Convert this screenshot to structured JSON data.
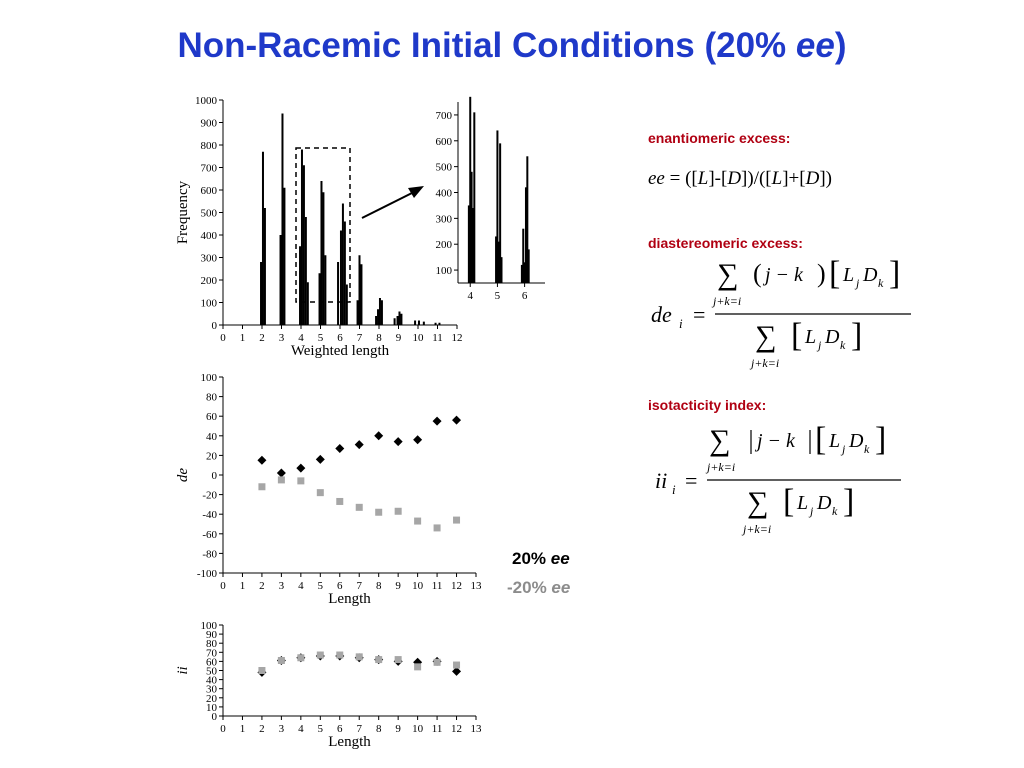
{
  "title": {
    "main": "Non-Racemic Initial Conditions (20% ",
    "em": "ee",
    "close": ")"
  },
  "labels": {
    "enantiomeric": "enantiomeric excess:",
    "diastereomeric": "diastereomeric excess:",
    "isotacticity": "isotacticity index:"
  },
  "ee_formula": {
    "lhs": "ee",
    "rhs_1": " = ([",
    "L": "L",
    "rhs_2": "]-[",
    "D": "D",
    "rhs_3": "])/([",
    "rhs_4": "]+[",
    "rhs_5": "])"
  },
  "formula_symbols": {
    "sum": "∑",
    "sub": "j+k=i",
    "jk": "j − k",
    "L": "L",
    "j": "j",
    "D": "D",
    "k": "k",
    "de": "de",
    "ii": "ii",
    "i": "i",
    "eq": "="
  },
  "legend": {
    "a_num": "20% ",
    "a_em": "ee",
    "a_color": "#000000",
    "b_num": "-20% ",
    "b_em": "ee",
    "b_color": "#8c8c8c"
  },
  "chart_data": [
    {
      "type": "bar",
      "ylabel": "Frequency",
      "xlabel": "Weighted length",
      "xlim": [
        0,
        12
      ],
      "ylim": [
        0,
        1000
      ],
      "xticks": [
        0,
        1,
        2,
        3,
        4,
        5,
        6,
        7,
        8,
        9,
        10,
        11,
        12
      ],
      "yticks": [
        0,
        100,
        200,
        300,
        400,
        500,
        600,
        700,
        800,
        900,
        1000
      ],
      "spikes": [
        [
          1.95,
          280
        ],
        [
          2.05,
          770
        ],
        [
          2.15,
          520
        ],
        [
          2.95,
          400
        ],
        [
          3.05,
          940
        ],
        [
          3.15,
          610
        ],
        [
          3.95,
          350
        ],
        [
          4.05,
          780
        ],
        [
          4.15,
          710
        ],
        [
          4.25,
          480
        ],
        [
          4.35,
          190
        ],
        [
          4.95,
          230
        ],
        [
          5.05,
          640
        ],
        [
          5.15,
          590
        ],
        [
          5.25,
          310
        ],
        [
          5.9,
          280
        ],
        [
          6.05,
          420
        ],
        [
          6.15,
          540
        ],
        [
          6.25,
          460
        ],
        [
          6.35,
          180
        ],
        [
          6.9,
          110
        ],
        [
          7.0,
          310
        ],
        [
          7.1,
          270
        ],
        [
          7.85,
          40
        ],
        [
          7.95,
          70
        ],
        [
          8.05,
          120
        ],
        [
          8.15,
          110
        ],
        [
          8.8,
          30
        ],
        [
          8.95,
          40
        ],
        [
          9.05,
          60
        ],
        [
          9.15,
          50
        ],
        [
          9.85,
          20
        ],
        [
          10.05,
          20
        ],
        [
          10.3,
          15
        ],
        [
          10.9,
          10
        ],
        [
          11.1,
          10
        ]
      ]
    },
    {
      "type": "bar",
      "note": "inset zoom",
      "xlim": [
        3.55,
        6.75
      ],
      "ylim": [
        50,
        750
      ],
      "xticks": [
        4,
        5,
        6
      ],
      "yticks": [
        100,
        200,
        300,
        400,
        500,
        600,
        700
      ],
      "spikes": [
        [
          3.95,
          350
        ],
        [
          4.0,
          770
        ],
        [
          4.05,
          480
        ],
        [
          4.1,
          340
        ],
        [
          4.15,
          710
        ],
        [
          4.95,
          230
        ],
        [
          5.0,
          640
        ],
        [
          5.05,
          210
        ],
        [
          5.1,
          590
        ],
        [
          5.15,
          150
        ],
        [
          5.9,
          120
        ],
        [
          5.95,
          260
        ],
        [
          6.0,
          130
        ],
        [
          6.05,
          420
        ],
        [
          6.1,
          540
        ],
        [
          6.15,
          180
        ]
      ]
    },
    {
      "type": "scatter",
      "ylabel": "de",
      "xlabel": "Length",
      "xlim": [
        0,
        13
      ],
      "ylim": [
        -100,
        100
      ],
      "xticks": [
        0,
        1,
        2,
        3,
        4,
        5,
        6,
        7,
        8,
        9,
        10,
        11,
        12,
        13
      ],
      "yticks": [
        100,
        80,
        60,
        40,
        20,
        0,
        -20,
        -40,
        -60,
        -80,
        -100
      ],
      "x": [
        2,
        3,
        4,
        5,
        6,
        7,
        8,
        9,
        10,
        11,
        12
      ],
      "series": [
        {
          "name": "20% ee",
          "color": "#000000",
          "marker": "diamond",
          "values": [
            15,
            2,
            7,
            16,
            27,
            31,
            40,
            34,
            36,
            55,
            56
          ]
        },
        {
          "name": "-20% ee",
          "color": "#a6a6a6",
          "marker": "square",
          "values": [
            -12,
            -5,
            -6,
            -18,
            -27,
            -33,
            -38,
            -37,
            -47,
            -54,
            -46
          ]
        }
      ]
    },
    {
      "type": "scatter",
      "ylabel": "ii",
      "xlabel": "Length",
      "xlim": [
        0,
        13
      ],
      "ylim": [
        0,
        100
      ],
      "xticks": [
        0,
        1,
        2,
        3,
        4,
        5,
        6,
        7,
        8,
        9,
        10,
        11,
        12,
        13
      ],
      "yticks": [
        0,
        10,
        20,
        30,
        40,
        50,
        60,
        70,
        80,
        90,
        100
      ],
      "x": [
        2,
        3,
        4,
        5,
        6,
        7,
        8,
        9,
        10,
        11,
        12
      ],
      "series": [
        {
          "name": "20% ee",
          "color": "#000000",
          "marker": "diamond",
          "values": [
            48,
            61,
            64,
            66,
            66,
            64,
            62,
            60,
            59,
            60,
            49
          ]
        },
        {
          "name": "-20% ee",
          "color": "#a6a6a6",
          "marker": "square",
          "values": [
            50,
            61,
            64,
            67,
            67,
            65,
            62,
            62,
            54,
            59,
            56
          ]
        }
      ]
    }
  ]
}
